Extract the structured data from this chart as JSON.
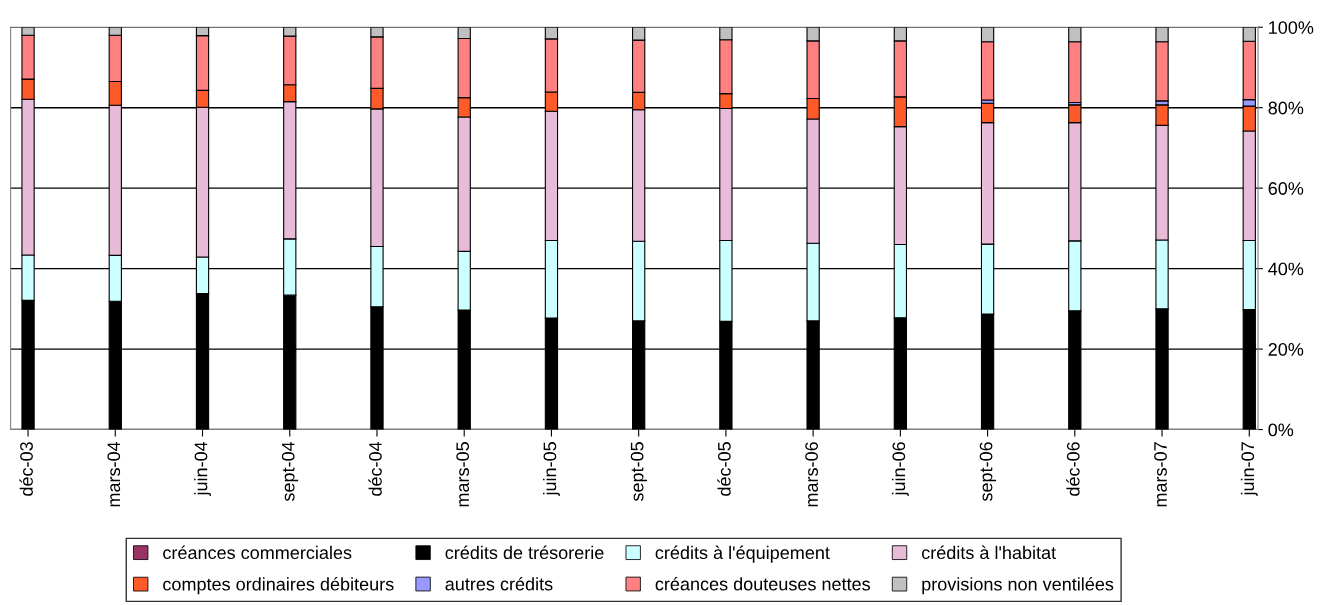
{
  "chart_data": {
    "type": "bar",
    "stacked": true,
    "categories": [
      "déc-03",
      "mars-04",
      "juin-04",
      "sept-04",
      "déc-04",
      "mars-05",
      "juin-05",
      "sept-05",
      "déc-05",
      "mars-06",
      "juin-06",
      "sept-06",
      "déc-06",
      "mars-07",
      "juin-07"
    ],
    "series": [
      {
        "name": "créances commerciales",
        "color": "#993366",
        "values": [
          0,
          0,
          0,
          0,
          0,
          0,
          0,
          0,
          0,
          0,
          0,
          0,
          0,
          0,
          0
        ]
      },
      {
        "name": "crédits de trésorerie",
        "color": "#000000",
        "values": [
          32.1,
          31.9,
          33.8,
          33.4,
          30.5,
          29.7,
          27.7,
          27.0,
          26.9,
          27.0,
          27.8,
          28.7,
          29.5,
          30.0,
          29.8
        ]
      },
      {
        "name": "crédits à l'équipement",
        "color": "#ccffff",
        "values": [
          11.3,
          11.4,
          9.1,
          14.0,
          15.0,
          14.6,
          19.3,
          19.8,
          20.1,
          19.3,
          18.2,
          17.4,
          17.4,
          17.1,
          17.2
        ]
      },
      {
        "name": "crédits à l'habitat",
        "color": "#e8bcd8",
        "values": [
          38.7,
          37.3,
          37.2,
          34.1,
          34.2,
          33.4,
          32.1,
          32.7,
          32.8,
          30.9,
          29.3,
          30.2,
          29.4,
          28.5,
          27.2
        ]
      },
      {
        "name": "comptes ordinaires débiteurs",
        "color": "#ff5a2a",
        "values": [
          5.0,
          5.9,
          4.2,
          4.2,
          5.1,
          4.8,
          4.8,
          4.3,
          3.7,
          5.1,
          7.4,
          4.8,
          4.4,
          5.1,
          6.2
        ]
      },
      {
        "name": "autres crédits",
        "color": "#9999ff",
        "values": [
          0,
          0,
          0,
          0,
          0,
          0,
          0,
          0,
          0,
          0,
          0,
          0.8,
          0.6,
          1.0,
          1.6
        ]
      },
      {
        "name": "créances douteuses nettes",
        "color": "#ff8080",
        "values": [
          10.9,
          11.5,
          13.6,
          12.1,
          12.8,
          14.7,
          13.2,
          13.0,
          13.4,
          14.3,
          13.9,
          14.5,
          15.1,
          14.7,
          14.5
        ]
      },
      {
        "name": "provisions non ventilées",
        "color": "#c0c0c0",
        "values": [
          2.0,
          2.0,
          2.1,
          2.2,
          2.4,
          2.8,
          2.9,
          3.2,
          3.1,
          3.4,
          3.4,
          3.6,
          3.6,
          3.6,
          3.5
        ]
      }
    ],
    "ylim": [
      0,
      100
    ],
    "yticks": [
      {
        "value": 0,
        "label": "0%"
      },
      {
        "value": 20,
        "label": "20%"
      },
      {
        "value": 40,
        "label": "40%"
      },
      {
        "value": 60,
        "label": "60%"
      },
      {
        "value": 80,
        "label": "80%"
      },
      {
        "value": 100,
        "label": "100%"
      }
    ],
    "grid": "y",
    "legend": "bottom"
  }
}
